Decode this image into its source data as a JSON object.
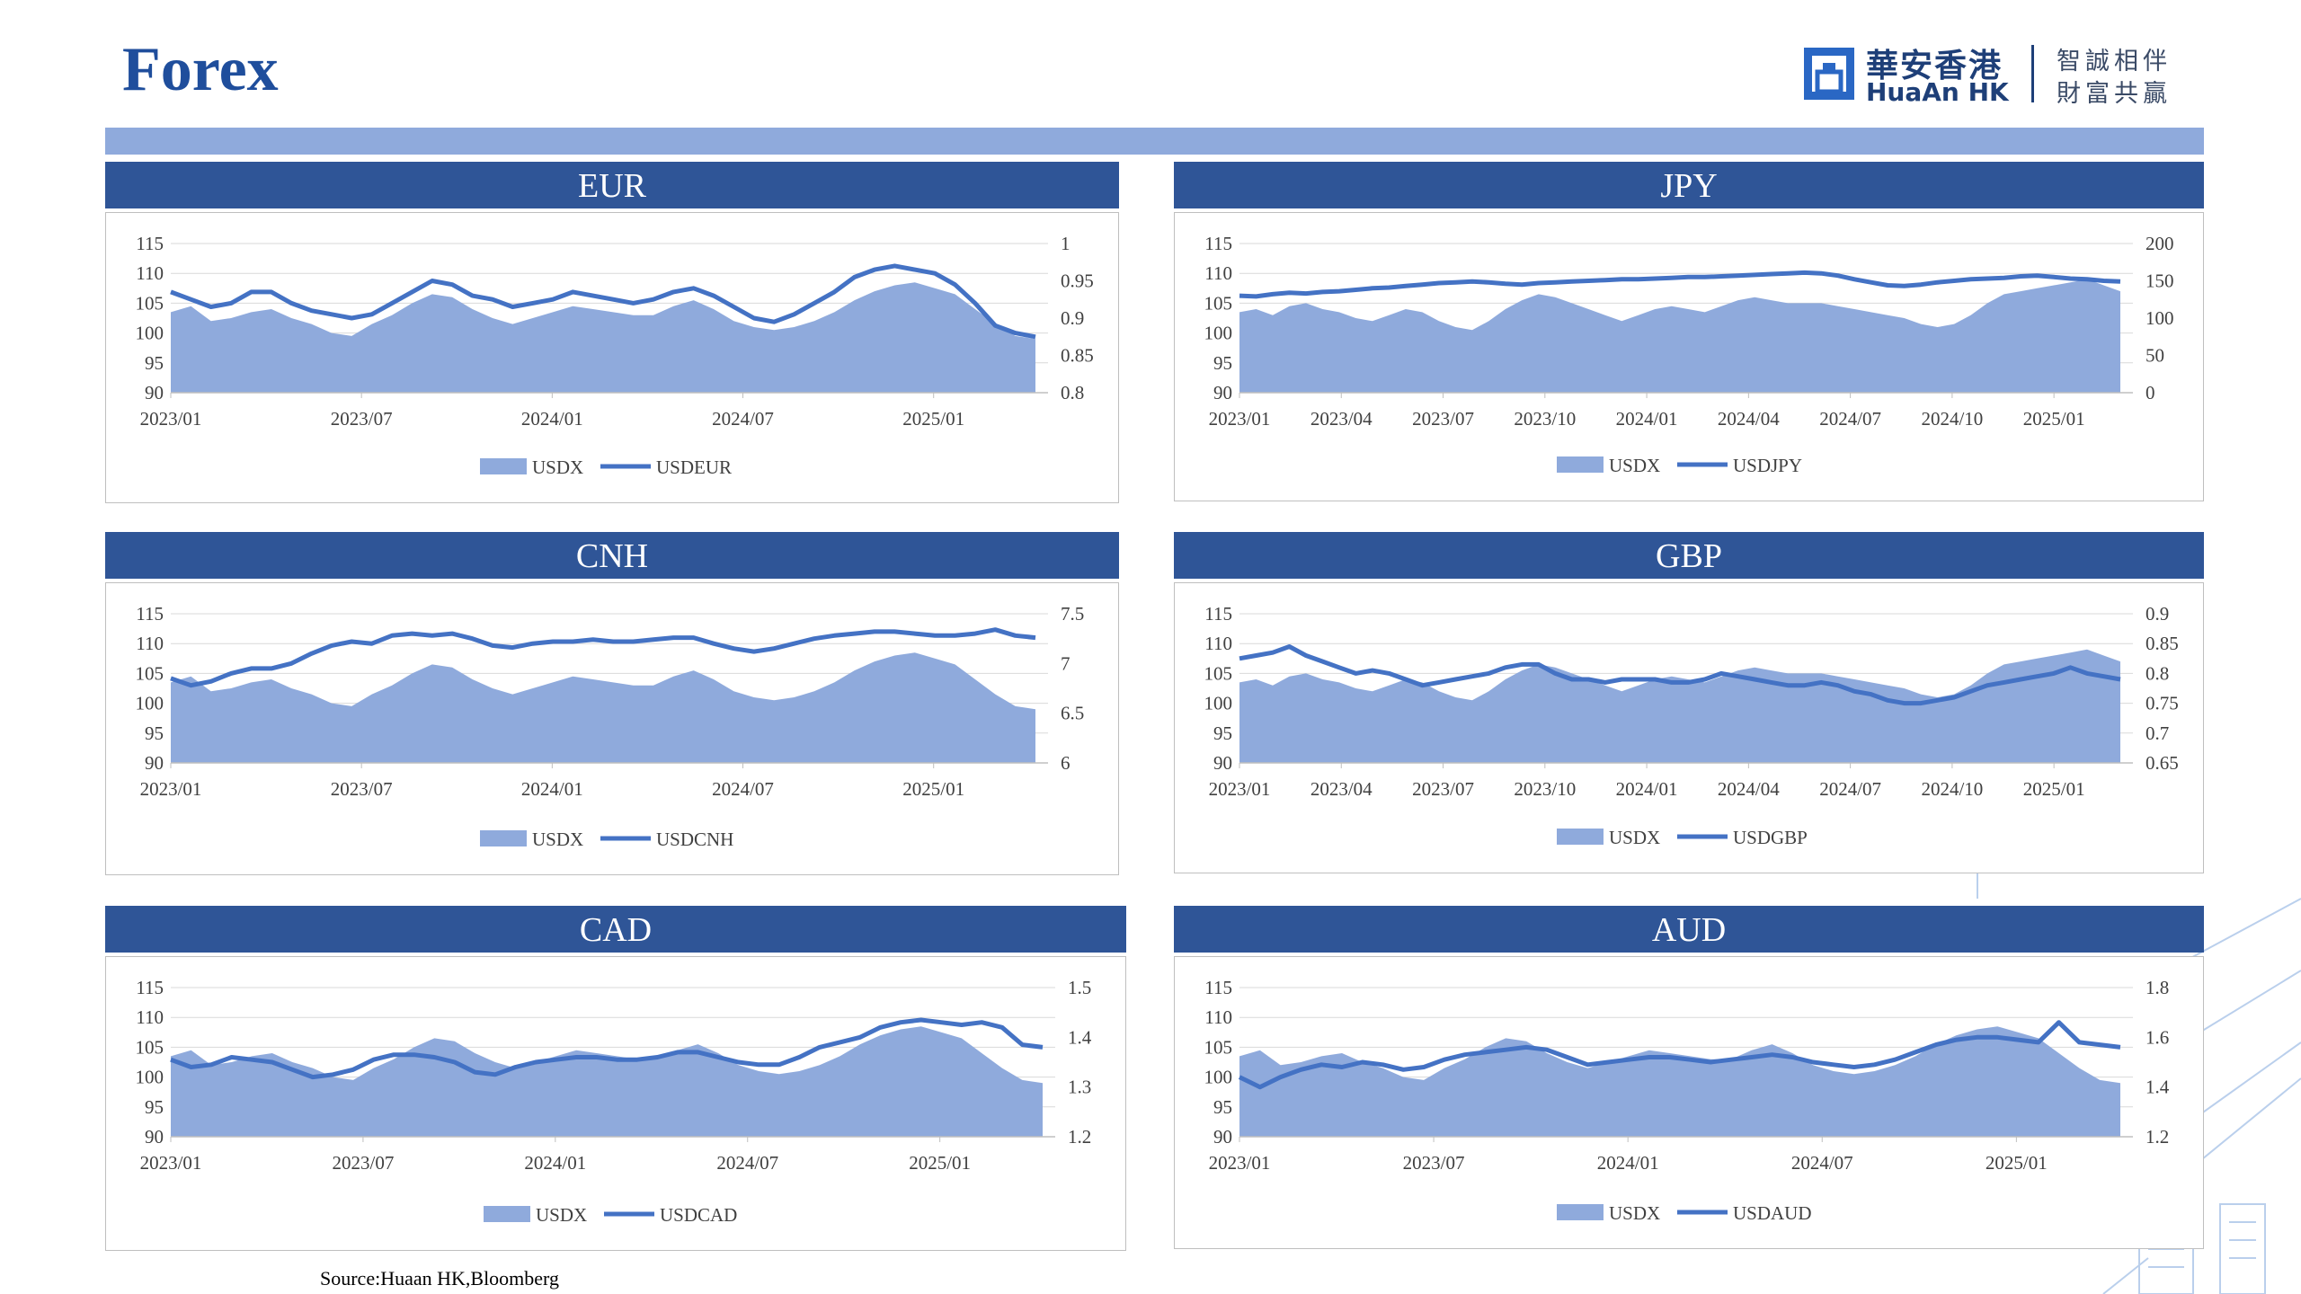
{
  "page": {
    "title": "Forex",
    "source": "Source:Huaan HK,Bloomberg"
  },
  "logo": {
    "name_cn": "華安香港",
    "name_en": "HuaAn HK",
    "slogan_line1": "智誠相伴",
    "slogan_line2": "財富共贏"
  },
  "colors": {
    "header": "#2f5597",
    "band": "#8faadc",
    "area": "#8faadc",
    "line": "#4472c4",
    "title": "#1f4e9c"
  },
  "chart_data": [
    {
      "type": "area+line",
      "title": "EUR",
      "x_ticks": [
        "2023/01",
        "2023/07",
        "2024/01",
        "2024/07",
        "2025/01"
      ],
      "left_axis": {
        "ticks": [
          "90",
          "95",
          "100",
          "105",
          "110",
          "115"
        ],
        "ylim": [
          90,
          115
        ]
      },
      "right_axis": {
        "ticks": [
          "0.8",
          "0.85",
          "0.9",
          "0.95",
          "1"
        ],
        "ylim": [
          0.8,
          1.0
        ]
      },
      "legend": [
        "USDX",
        "USDEUR"
      ],
      "series": [
        {
          "name": "USDX",
          "axis": "left",
          "kind": "area",
          "values": [
            103.5,
            104.5,
            102.0,
            102.5,
            103.5,
            104.0,
            102.5,
            101.5,
            100.0,
            99.5,
            101.5,
            103.0,
            105.0,
            106.5,
            106.0,
            104.0,
            102.5,
            101.5,
            102.5,
            103.5,
            104.5,
            104.0,
            103.5,
            103.0,
            103.0,
            104.5,
            105.5,
            104.0,
            102.0,
            101.0,
            100.5,
            101.0,
            102.0,
            103.5,
            105.5,
            107.0,
            108.0,
            108.5,
            107.5,
            106.5,
            104.0,
            101.5,
            99.5,
            99.0
          ]
        },
        {
          "name": "USDEUR",
          "axis": "right",
          "kind": "line",
          "values": [
            0.935,
            0.925,
            0.915,
            0.92,
            0.935,
            0.935,
            0.92,
            0.91,
            0.905,
            0.9,
            0.905,
            0.92,
            0.935,
            0.95,
            0.945,
            0.93,
            0.925,
            0.915,
            0.92,
            0.925,
            0.935,
            0.93,
            0.925,
            0.92,
            0.925,
            0.935,
            0.94,
            0.93,
            0.915,
            0.9,
            0.895,
            0.905,
            0.92,
            0.935,
            0.955,
            0.965,
            0.97,
            0.965,
            0.96,
            0.945,
            0.92,
            0.89,
            0.88,
            0.875
          ]
        }
      ]
    },
    {
      "type": "area+line",
      "title": "JPY",
      "x_ticks": [
        "2023/01",
        "2023/04",
        "2023/07",
        "2023/10",
        "2024/01",
        "2024/04",
        "2024/07",
        "2024/10",
        "2025/01"
      ],
      "left_axis": {
        "ticks": [
          "90",
          "95",
          "100",
          "105",
          "110",
          "115"
        ],
        "ylim": [
          90,
          115
        ]
      },
      "right_axis": {
        "ticks": [
          "0",
          "50",
          "100",
          "150",
          "200"
        ],
        "ylim": [
          0,
          200
        ]
      },
      "legend": [
        "USDX",
        "USDJPY"
      ],
      "series": [
        {
          "name": "USDX",
          "axis": "left",
          "kind": "area",
          "values": [
            103.5,
            104.0,
            103.0,
            104.5,
            105.0,
            104.0,
            103.5,
            102.5,
            102.0,
            103.0,
            104.0,
            103.5,
            102.0,
            101.0,
            100.5,
            102.0,
            104.0,
            105.5,
            106.5,
            106.0,
            105.0,
            104.0,
            103.0,
            102.0,
            103.0,
            104.0,
            104.5,
            104.0,
            103.5,
            104.5,
            105.5,
            106.0,
            105.5,
            105.0,
            105.0,
            105.0,
            104.5,
            104.0,
            103.5,
            103.0,
            102.5,
            101.5,
            101.0,
            101.5,
            103.0,
            105.0,
            106.5,
            107.0,
            107.5,
            108.0,
            108.5,
            109.0,
            108.0,
            107.0
          ]
        },
        {
          "name": "USDJPY",
          "axis": "right",
          "kind": "line",
          "values": [
            130,
            129,
            132,
            134,
            133,
            135,
            136,
            138,
            140,
            141,
            143,
            145,
            147,
            148,
            149,
            148,
            146,
            145,
            147,
            148,
            149,
            150,
            151,
            152,
            152,
            153,
            154,
            155,
            155,
            156,
            157,
            158,
            159,
            160,
            161,
            160,
            157,
            152,
            148,
            144,
            143,
            145,
            148,
            150,
            152,
            153,
            154,
            156,
            157,
            155,
            153,
            152,
            150,
            149
          ]
        }
      ]
    },
    {
      "type": "area+line",
      "title": "CNH",
      "x_ticks": [
        "2023/01",
        "2023/07",
        "2024/01",
        "2024/07",
        "2025/01"
      ],
      "left_axis": {
        "ticks": [
          "90",
          "95",
          "100",
          "105",
          "110",
          "115"
        ],
        "ylim": [
          90,
          115
        ]
      },
      "right_axis": {
        "ticks": [
          "6",
          "6.5",
          "7",
          "7.5"
        ],
        "ylim": [
          6.0,
          7.5
        ]
      },
      "legend": [
        "USDX",
        "USDCNH"
      ],
      "series": [
        {
          "name": "USDX",
          "axis": "left",
          "kind": "area",
          "values": [
            103.5,
            104.5,
            102.0,
            102.5,
            103.5,
            104.0,
            102.5,
            101.5,
            100.0,
            99.5,
            101.5,
            103.0,
            105.0,
            106.5,
            106.0,
            104.0,
            102.5,
            101.5,
            102.5,
            103.5,
            104.5,
            104.0,
            103.5,
            103.0,
            103.0,
            104.5,
            105.5,
            104.0,
            102.0,
            101.0,
            100.5,
            101.0,
            102.0,
            103.5,
            105.5,
            107.0,
            108.0,
            108.5,
            107.5,
            106.5,
            104.0,
            101.5,
            99.5,
            99.0
          ]
        },
        {
          "name": "USDCNH",
          "axis": "right",
          "kind": "line",
          "values": [
            6.85,
            6.78,
            6.82,
            6.9,
            6.95,
            6.95,
            7.0,
            7.1,
            7.18,
            7.22,
            7.2,
            7.28,
            7.3,
            7.28,
            7.3,
            7.25,
            7.18,
            7.16,
            7.2,
            7.22,
            7.22,
            7.24,
            7.22,
            7.22,
            7.24,
            7.26,
            7.26,
            7.2,
            7.15,
            7.12,
            7.15,
            7.2,
            7.25,
            7.28,
            7.3,
            7.32,
            7.32,
            7.3,
            7.28,
            7.28,
            7.3,
            7.34,
            7.28,
            7.26
          ]
        }
      ]
    },
    {
      "type": "area+line",
      "title": "GBP",
      "x_ticks": [
        "2023/01",
        "2023/04",
        "2023/07",
        "2023/10",
        "2024/01",
        "2024/04",
        "2024/07",
        "2024/10",
        "2025/01"
      ],
      "left_axis": {
        "ticks": [
          "90",
          "95",
          "100",
          "105",
          "110",
          "115"
        ],
        "ylim": [
          90,
          115
        ]
      },
      "right_axis": {
        "ticks": [
          "0.65",
          "0.7",
          "0.75",
          "0.8",
          "0.85",
          "0.9"
        ],
        "ylim": [
          0.65,
          0.9
        ]
      },
      "legend": [
        "USDX",
        "USDGBP"
      ],
      "series": [
        {
          "name": "USDX",
          "axis": "left",
          "kind": "area",
          "values": [
            103.5,
            104.0,
            103.0,
            104.5,
            105.0,
            104.0,
            103.5,
            102.5,
            102.0,
            103.0,
            104.0,
            103.5,
            102.0,
            101.0,
            100.5,
            102.0,
            104.0,
            105.5,
            106.5,
            106.0,
            105.0,
            104.0,
            103.0,
            102.0,
            103.0,
            104.0,
            104.5,
            104.0,
            103.5,
            104.5,
            105.5,
            106.0,
            105.5,
            105.0,
            105.0,
            105.0,
            104.5,
            104.0,
            103.5,
            103.0,
            102.5,
            101.5,
            101.0,
            101.5,
            103.0,
            105.0,
            106.5,
            107.0,
            107.5,
            108.0,
            108.5,
            109.0,
            108.0,
            107.0
          ]
        },
        {
          "name": "USDGBP",
          "axis": "right",
          "kind": "line",
          "values": [
            0.825,
            0.83,
            0.835,
            0.845,
            0.83,
            0.82,
            0.81,
            0.8,
            0.805,
            0.8,
            0.79,
            0.78,
            0.785,
            0.79,
            0.795,
            0.8,
            0.81,
            0.815,
            0.815,
            0.8,
            0.79,
            0.79,
            0.785,
            0.79,
            0.79,
            0.79,
            0.785,
            0.785,
            0.79,
            0.8,
            0.795,
            0.79,
            0.785,
            0.78,
            0.78,
            0.785,
            0.78,
            0.77,
            0.765,
            0.755,
            0.75,
            0.75,
            0.755,
            0.76,
            0.77,
            0.78,
            0.785,
            0.79,
            0.795,
            0.8,
            0.81,
            0.8,
            0.795,
            0.79
          ]
        }
      ]
    },
    {
      "type": "area+line",
      "title": "CAD",
      "x_ticks": [
        "2023/01",
        "2023/07",
        "2024/01",
        "2024/07",
        "2025/01"
      ],
      "left_axis": {
        "ticks": [
          "90",
          "95",
          "100",
          "105",
          "110",
          "115"
        ],
        "ylim": [
          90,
          115
        ]
      },
      "right_axis": {
        "ticks": [
          "1.2",
          "1.3",
          "1.4",
          "1.5"
        ],
        "ylim": [
          1.2,
          1.5
        ]
      },
      "legend": [
        "USDX",
        "USDCAD"
      ],
      "series": [
        {
          "name": "USDX",
          "axis": "left",
          "kind": "area",
          "values": [
            103.5,
            104.5,
            102.0,
            102.5,
            103.5,
            104.0,
            102.5,
            101.5,
            100.0,
            99.5,
            101.5,
            103.0,
            105.0,
            106.5,
            106.0,
            104.0,
            102.5,
            101.5,
            102.5,
            103.5,
            104.5,
            104.0,
            103.5,
            103.0,
            103.0,
            104.5,
            105.5,
            104.0,
            102.0,
            101.0,
            100.5,
            101.0,
            102.0,
            103.5,
            105.5,
            107.0,
            108.0,
            108.5,
            107.5,
            106.5,
            104.0,
            101.5,
            99.5,
            99.0
          ]
        },
        {
          "name": "USDCAD",
          "axis": "right",
          "kind": "line",
          "values": [
            1.355,
            1.34,
            1.345,
            1.36,
            1.355,
            1.35,
            1.335,
            1.32,
            1.325,
            1.335,
            1.355,
            1.365,
            1.365,
            1.36,
            1.35,
            1.33,
            1.325,
            1.34,
            1.35,
            1.355,
            1.36,
            1.36,
            1.355,
            1.355,
            1.36,
            1.37,
            1.37,
            1.36,
            1.35,
            1.345,
            1.345,
            1.36,
            1.38,
            1.39,
            1.4,
            1.42,
            1.43,
            1.435,
            1.43,
            1.425,
            1.43,
            1.42,
            1.385,
            1.38
          ]
        }
      ]
    },
    {
      "type": "area+line",
      "title": "AUD",
      "x_ticks": [
        "2023/01",
        "2023/07",
        "2024/01",
        "2024/07",
        "2025/01"
      ],
      "left_axis": {
        "ticks": [
          "90",
          "95",
          "100",
          "105",
          "110",
          "115"
        ],
        "ylim": [
          90,
          115
        ]
      },
      "right_axis": {
        "ticks": [
          "1.2",
          "1.4",
          "1.6",
          "1.8"
        ],
        "ylim": [
          1.2,
          1.8
        ]
      },
      "legend": [
        "USDX",
        "USDAUD"
      ],
      "series": [
        {
          "name": "USDX",
          "axis": "left",
          "kind": "area",
          "values": [
            103.5,
            104.5,
            102.0,
            102.5,
            103.5,
            104.0,
            102.5,
            101.5,
            100.0,
            99.5,
            101.5,
            103.0,
            105.0,
            106.5,
            106.0,
            104.0,
            102.5,
            101.5,
            102.5,
            103.5,
            104.5,
            104.0,
            103.5,
            103.0,
            103.0,
            104.5,
            105.5,
            104.0,
            102.0,
            101.0,
            100.5,
            101.0,
            102.0,
            103.5,
            105.5,
            107.0,
            108.0,
            108.5,
            107.5,
            106.5,
            104.0,
            101.5,
            99.5,
            99.0
          ]
        },
        {
          "name": "USDAUD",
          "axis": "right",
          "kind": "line",
          "values": [
            1.44,
            1.4,
            1.44,
            1.47,
            1.49,
            1.48,
            1.5,
            1.49,
            1.47,
            1.48,
            1.51,
            1.53,
            1.54,
            1.55,
            1.56,
            1.55,
            1.52,
            1.49,
            1.5,
            1.51,
            1.52,
            1.52,
            1.51,
            1.5,
            1.51,
            1.52,
            1.53,
            1.52,
            1.5,
            1.49,
            1.48,
            1.49,
            1.51,
            1.54,
            1.57,
            1.59,
            1.6,
            1.6,
            1.59,
            1.58,
            1.66,
            1.58,
            1.57,
            1.56
          ]
        }
      ]
    }
  ]
}
